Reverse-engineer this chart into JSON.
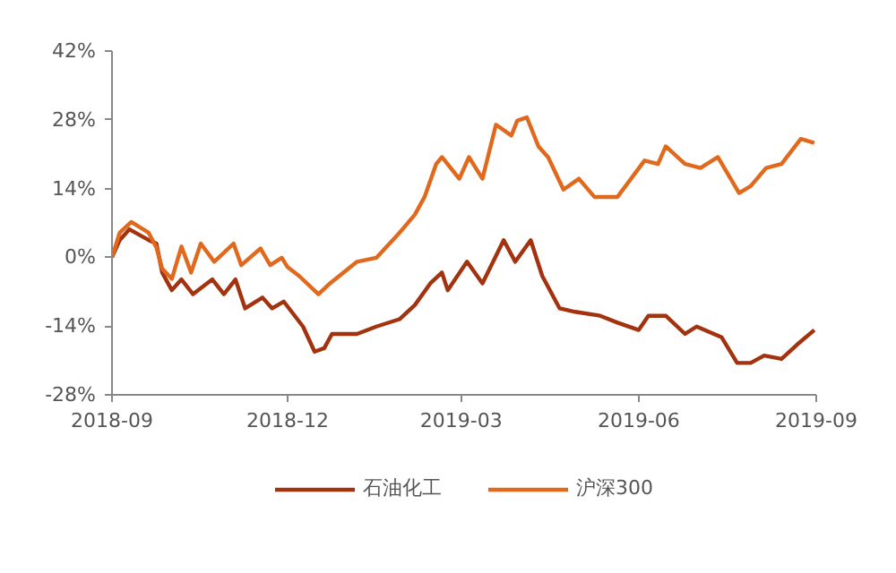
{
  "chart_data": {
    "type": "line",
    "xlim": [
      "2018-09",
      "2019-09"
    ],
    "xticks": [
      "2018-09",
      "2018-12",
      "2019-03",
      "2019-06",
      "2019-09"
    ],
    "ylim": [
      -28,
      42
    ],
    "yticks": [
      {
        "value": -28,
        "label": "-28%"
      },
      {
        "value": -14,
        "label": "-14%"
      },
      {
        "value": 0,
        "label": "0%"
      },
      {
        "value": 14,
        "label": "14%"
      },
      {
        "value": 28,
        "label": "28%"
      },
      {
        "value": 42,
        "label": "42%"
      }
    ],
    "grid": false,
    "legend": "bottom",
    "line_style": "solid",
    "series": [
      {
        "name": "石油化工",
        "color": "#a3320f",
        "x": [
          "2018-09-01",
          "2018-09-05",
          "2018-09-10",
          "2018-09-20",
          "2018-09-24",
          "2018-09-27",
          "2018-10-02",
          "2018-10-07",
          "2018-10-13",
          "2018-10-23",
          "2018-10-29",
          "2018-11-04",
          "2018-11-09",
          "2018-11-18",
          "2018-11-23",
          "2018-11-29",
          "2018-12-09",
          "2018-12-15",
          "2018-12-20",
          "2018-12-24",
          "2019-01-06",
          "2019-01-16",
          "2019-01-28",
          "2019-02-05",
          "2019-02-13",
          "2019-02-19",
          "2019-02-22",
          "2019-03-04",
          "2019-03-12",
          "2019-03-23",
          "2019-03-29",
          "2019-04-06",
          "2019-04-12",
          "2019-04-21",
          "2019-04-29",
          "2019-05-12",
          "2019-05-21",
          "2019-06-01",
          "2019-06-06",
          "2019-06-15",
          "2019-06-25",
          "2019-07-01",
          "2019-07-14",
          "2019-07-22",
          "2019-07-29",
          "2019-08-05",
          "2019-08-14",
          "2019-08-22",
          "2019-08-31"
        ],
        "values": [
          0,
          3.5,
          5.7,
          3.5,
          2.8,
          -3.1,
          -6.7,
          -4.5,
          -7.5,
          -4.5,
          -7.5,
          -4.5,
          -10.4,
          -8.2,
          -10.4,
          -9,
          -14.1,
          -19.2,
          -18.5,
          -15.6,
          -15.6,
          -14.1,
          -12.6,
          -9.7,
          -5.3,
          -3.1,
          -6.7,
          -0.9,
          -5.3,
          3.5,
          -0.9,
          3.5,
          -3.8,
          -10.4,
          -11.1,
          -11.9,
          -13.3,
          -14.8,
          -11.9,
          -11.9,
          -15.6,
          -14.1,
          -16.3,
          -21.5,
          -21.5,
          -20,
          -20.7,
          -17.8,
          -14.8
        ]
      },
      {
        "name": "沪深300",
        "color": "#e0691e",
        "x": [
          "2018-09-01",
          "2018-09-05",
          "2018-09-11",
          "2018-09-20",
          "2018-09-24",
          "2018-09-27",
          "2018-10-02",
          "2018-10-07",
          "2018-10-12",
          "2018-10-17",
          "2018-10-24",
          "2018-11-03",
          "2018-11-07",
          "2018-11-17",
          "2018-11-22",
          "2018-11-28",
          "2018-12-01",
          "2018-12-07",
          "2018-12-17",
          "2018-12-23",
          "2019-01-06",
          "2019-01-16",
          "2019-01-28",
          "2019-02-05",
          "2019-02-10",
          "2019-02-16",
          "2019-02-19",
          "2019-02-28",
          "2019-03-05",
          "2019-03-12",
          "2019-03-19",
          "2019-03-27",
          "2019-03-30",
          "2019-04-04",
          "2019-04-10",
          "2019-04-15",
          "2019-04-23",
          "2019-05-01",
          "2019-05-09",
          "2019-05-21",
          "2019-05-28",
          "2019-06-04",
          "2019-06-11",
          "2019-06-15",
          "2019-06-25",
          "2019-07-03",
          "2019-07-12",
          "2019-07-23",
          "2019-07-29",
          "2019-08-06",
          "2019-08-14",
          "2019-08-24",
          "2019-08-31"
        ],
        "values": [
          0,
          5,
          7.2,
          5,
          2,
          -2.3,
          -4.4,
          2.2,
          -3.1,
          2.8,
          -0.9,
          2.8,
          -1.6,
          1.8,
          -1.6,
          -0.1,
          -2,
          -3.8,
          -7.5,
          -5.3,
          -0.9,
          -0.1,
          5,
          8.7,
          12.3,
          19,
          20.4,
          16,
          20.4,
          16,
          27,
          24.8,
          27.8,
          28.5,
          22.6,
          20.4,
          13.8,
          16,
          12.3,
          12.3,
          16,
          19.7,
          19,
          22.6,
          19,
          18.2,
          20.4,
          13.1,
          14.5,
          18.2,
          19,
          24.1,
          23.3
        ]
      }
    ]
  }
}
